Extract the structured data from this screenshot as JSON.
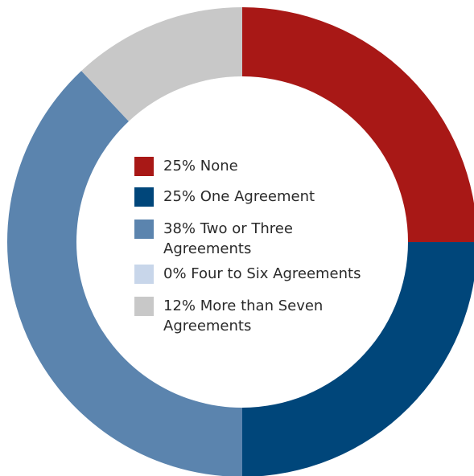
{
  "chart_data": {
    "type": "pie",
    "title": "",
    "slices": [
      {
        "label": "None",
        "legend_text": "25% None",
        "value": 25,
        "color": "#a81816"
      },
      {
        "label": "One Agreement",
        "legend_text": "25% One Agreement",
        "value": 25,
        "color": "#00467a"
      },
      {
        "label": "Two or Three Agreements",
        "legend_text": "38% Two or Three Agreements",
        "value": 38,
        "color": "#5b84ae"
      },
      {
        "label": "Four to Six Agreements",
        "legend_text": "0% Four to Six Agreements",
        "value": 0,
        "color": "#c8d6ea"
      },
      {
        "label": "More than Seven Agreements",
        "legend_text": "12% More than Seven Agreements",
        "value": 12,
        "color": "#c8c8c8"
      }
    ],
    "donut": true,
    "legend_position": "center"
  }
}
